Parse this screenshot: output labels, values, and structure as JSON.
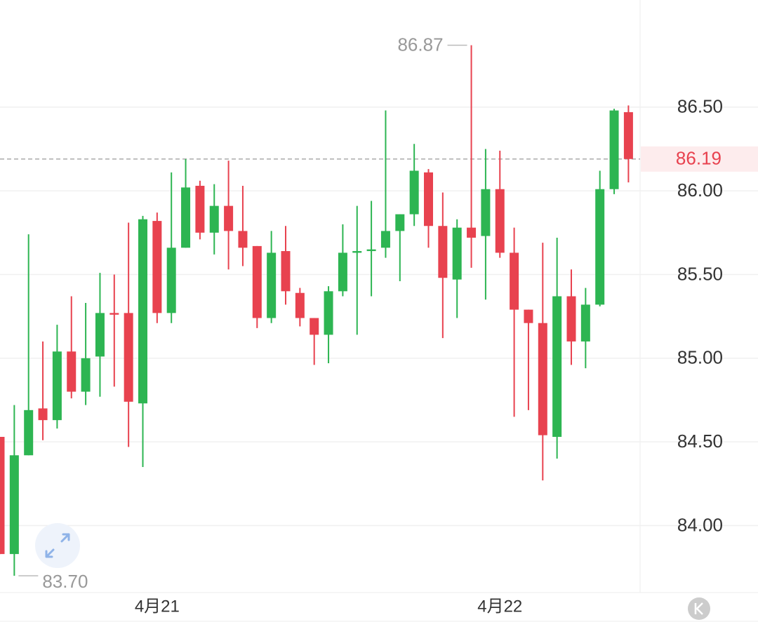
{
  "chart_data": {
    "type": "candlestick",
    "categories": [
      null,
      null,
      null,
      null,
      null,
      null,
      null,
      null,
      null,
      null,
      null,
      "4月21",
      null,
      null,
      null,
      null,
      null,
      null,
      null,
      null,
      null,
      null,
      null,
      null,
      null,
      null,
      null,
      null,
      null,
      null,
      null,
      null,
      null,
      null,
      null,
      "4月22",
      null,
      null,
      null,
      null,
      null,
      null,
      null,
      null,
      null
    ],
    "series": [
      {
        "name": "open",
        "values": [
          84.53,
          83.83,
          84.42,
          84.7,
          84.63,
          85.04,
          84.8,
          85.01,
          85.27,
          85.27,
          84.73,
          85.82,
          85.27,
          85.66,
          86.03,
          85.75,
          85.91,
          85.76,
          85.67,
          85.24,
          85.64,
          85.39,
          85.24,
          85.14,
          85.4,
          85.63,
          85.64,
          85.66,
          85.76,
          85.86,
          86.11,
          85.79,
          85.47,
          85.78,
          85.73,
          86.01,
          85.63,
          85.29,
          85.21,
          84.53,
          85.37,
          85.1,
          85.32,
          86.01,
          86.47
        ]
      },
      {
        "name": "high",
        "values": [
          84.53,
          84.72,
          85.74,
          85.1,
          85.2,
          85.37,
          85.33,
          85.51,
          85.5,
          85.81,
          85.85,
          85.87,
          86.11,
          86.19,
          86.06,
          86.04,
          86.18,
          86.03,
          85.67,
          85.76,
          85.79,
          85.42,
          85.24,
          85.43,
          85.8,
          85.91,
          85.94,
          86.48,
          85.86,
          86.28,
          86.13,
          85.99,
          85.83,
          86.87,
          86.25,
          86.24,
          85.78,
          85.29,
          85.69,
          85.72,
          85.53,
          85.42,
          86.12,
          86.49,
          86.51
        ]
      },
      {
        "name": "low",
        "values": [
          83.83,
          83.7,
          84.42,
          84.51,
          84.58,
          84.76,
          84.72,
          84.77,
          84.83,
          84.47,
          84.35,
          85.21,
          85.21,
          85.66,
          85.71,
          85.62,
          85.53,
          85.55,
          85.18,
          85.21,
          85.32,
          85.19,
          84.96,
          84.97,
          85.37,
          85.14,
          85.37,
          85.6,
          85.46,
          85.79,
          85.66,
          85.12,
          85.24,
          85.54,
          85.35,
          85.6,
          84.65,
          84.69,
          84.27,
          84.4,
          84.96,
          84.94,
          85.31,
          85.98,
          86.05
        ]
      },
      {
        "name": "close",
        "values": [
          83.83,
          84.42,
          84.69,
          84.63,
          85.04,
          84.8,
          85.0,
          85.27,
          85.26,
          84.74,
          85.83,
          85.27,
          85.66,
          86.02,
          85.75,
          85.91,
          85.76,
          85.66,
          85.24,
          85.63,
          85.4,
          85.24,
          85.14,
          85.4,
          85.63,
          85.64,
          85.65,
          85.76,
          85.86,
          86.12,
          85.79,
          85.48,
          85.78,
          85.72,
          86.01,
          85.63,
          85.29,
          85.21,
          84.54,
          85.37,
          85.1,
          85.32,
          86.01,
          86.48,
          86.19
        ]
      }
    ],
    "up_color": "#2db552",
    "down_color": "#e8424f",
    "ylim": [
      83.6,
      87.14
    ],
    "yticks": [
      {
        "value": 84,
        "label": "84.00"
      },
      {
        "value": 84.5,
        "label": "84.50"
      },
      {
        "value": 85,
        "label": "85.00"
      },
      {
        "value": 85.5,
        "label": "85.50"
      },
      {
        "value": 86,
        "label": "86.00"
      },
      {
        "value": 86.5,
        "label": "86.50"
      }
    ],
    "grid": true,
    "last_price": 86.19,
    "max_label": {
      "value": 86.87,
      "label": "86.87"
    },
    "min_label": {
      "value": 83.7,
      "label": "83.70"
    }
  }
}
